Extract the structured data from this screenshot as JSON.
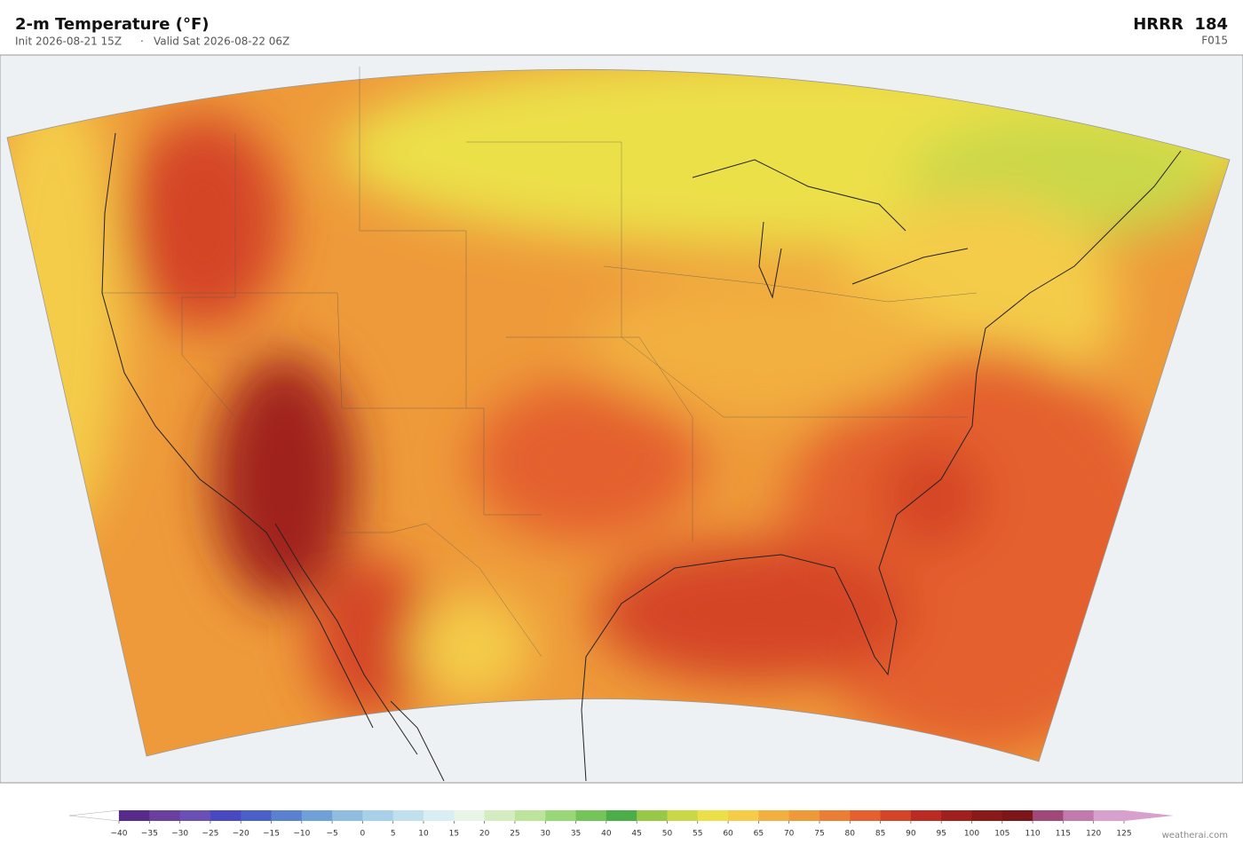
{
  "header": {
    "title": "2-m Temperature  (°F)",
    "init": "Init 2026-08-21 15Z",
    "separator": "·",
    "valid": "Valid Sat 2026-08-22 06Z",
    "model": "HRRR  184",
    "forecast_hour": "F015"
  },
  "colorbar": {
    "ticks": [
      {
        "value": -40,
        "label": "−40"
      },
      {
        "value": -35,
        "label": "−35"
      },
      {
        "value": -30,
        "label": "−30"
      },
      {
        "value": -25,
        "label": "−25"
      },
      {
        "value": -20,
        "label": "−20"
      },
      {
        "value": -15,
        "label": "−15"
      },
      {
        "value": -10,
        "label": "−10"
      },
      {
        "value": -5,
        "label": "−5"
      },
      0,
      5,
      10,
      15,
      20,
      25,
      30,
      35,
      40,
      45,
      50,
      55,
      60,
      65,
      70,
      75,
      80,
      85,
      90,
      95,
      100,
      105,
      110,
      115,
      120,
      125
    ],
    "colors": [
      "#582a8c",
      "#6b3fa0",
      "#6a4fb5",
      "#4848c0",
      "#4a60c8",
      "#5a80d0",
      "#70a0d8",
      "#90bce0",
      "#a8d0e8",
      "#c0e0ee",
      "#d8eef2",
      "#e6f5e6",
      "#d4ecc0",
      "#bce49a",
      "#98d878",
      "#74c45a",
      "#4cae48",
      "#98c848",
      "#cad848",
      "#ece048",
      "#f4cc48",
      "#f2b040",
      "#ee9a3a",
      "#ea7e34",
      "#e4602e",
      "#d44428",
      "#bc2a24",
      "#a0201e",
      "#8a1a1a",
      "#7c1618",
      "#a04878",
      "#c07aac",
      "#d8a0cc"
    ],
    "under_color": "#ffffff",
    "over_color": "#d8a0cc"
  },
  "watermark": "weatherai.com"
}
